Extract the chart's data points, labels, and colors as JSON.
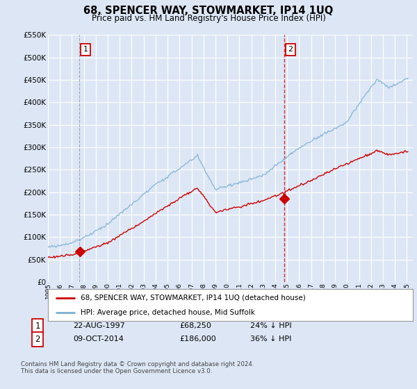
{
  "title": "68, SPENCER WAY, STOWMARKET, IP14 1UQ",
  "subtitle": "Price paid vs. HM Land Registry's House Price Index (HPI)",
  "ylim": [
    0,
    550000
  ],
  "yticks": [
    0,
    50000,
    100000,
    150000,
    200000,
    250000,
    300000,
    350000,
    400000,
    450000,
    500000,
    550000
  ],
  "background_color": "#dce6f5",
  "grid_color": "#ffffff",
  "hpi_color": "#7bafd4",
  "price_color": "#cc0000",
  "transaction1_date": 1997.64,
  "transaction1_price": 68250,
  "transaction2_date": 2014.77,
  "transaction2_price": 186000,
  "legend_label_price": "68, SPENCER WAY, STOWMARKET, IP14 1UQ (detached house)",
  "legend_label_hpi": "HPI: Average price, detached house, Mid Suffolk",
  "annotation1_date": "22-AUG-1997",
  "annotation1_price": "£68,250",
  "annotation1_hpi": "24% ↓ HPI",
  "annotation2_date": "09-OCT-2014",
  "annotation2_price": "£186,000",
  "annotation2_hpi": "36% ↓ HPI",
  "footer": "Contains HM Land Registry data © Crown copyright and database right 2024.\nThis data is licensed under the Open Government Licence v3.0."
}
